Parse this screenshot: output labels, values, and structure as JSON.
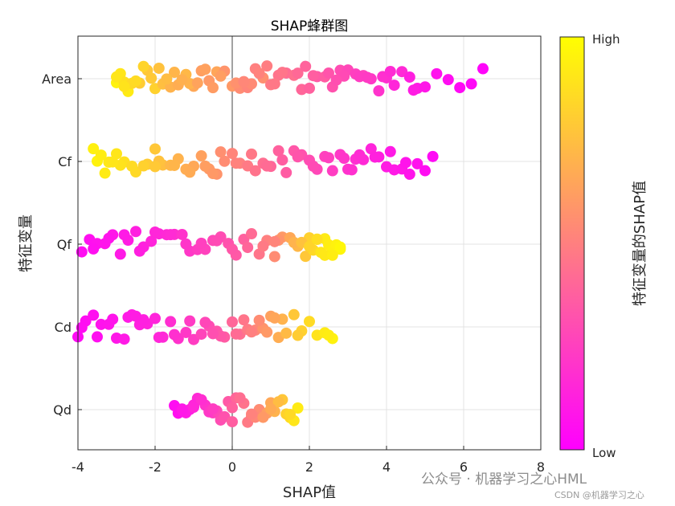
{
  "chart_data": {
    "type": "scatter",
    "title": "SHAP蜂群图",
    "xlabel": "SHAP值",
    "ylabel": "特征变量",
    "xlim": [
      -4,
      8
    ],
    "xticks": [
      "-4",
      "-2",
      "0",
      "2",
      "4",
      "6",
      "8"
    ],
    "grid": true,
    "colormap": {
      "low": "#ff00ff",
      "high": "#ffff00"
    },
    "colorbar": {
      "label": "特征变量的SHAP值",
      "low_label": "Low",
      "high_label": "High"
    },
    "features": [
      {
        "name": "Area",
        "points": [
          [
            -3.0,
            0.95
          ],
          [
            -2.9,
            0.9
          ],
          [
            -2.8,
            0.88
          ],
          [
            -2.7,
            0.92
          ],
          [
            -2.6,
            0.85
          ],
          [
            -2.4,
            0.8
          ],
          [
            -2.2,
            0.78
          ],
          [
            -2.0,
            0.82
          ],
          [
            -1.8,
            0.75
          ],
          [
            -1.6,
            0.7
          ],
          [
            -1.4,
            0.68
          ],
          [
            -1.2,
            0.72
          ],
          [
            -1.0,
            0.66
          ],
          [
            -0.8,
            0.62
          ],
          [
            -0.6,
            0.6
          ],
          [
            -0.4,
            0.65
          ],
          [
            -0.2,
            0.58
          ],
          [
            0.0,
            0.6
          ],
          [
            0.2,
            0.55
          ],
          [
            0.4,
            0.52
          ],
          [
            0.6,
            0.5
          ],
          [
            0.8,
            0.56
          ],
          [
            1.0,
            0.48
          ],
          [
            1.2,
            0.45
          ],
          [
            1.4,
            0.42
          ],
          [
            1.6,
            0.44
          ],
          [
            1.8,
            0.4
          ],
          [
            2.0,
            0.38
          ],
          [
            2.2,
            0.35
          ],
          [
            2.4,
            0.36
          ],
          [
            2.6,
            0.32
          ],
          [
            2.8,
            0.3
          ],
          [
            3.0,
            0.28
          ],
          [
            3.2,
            0.25
          ],
          [
            3.4,
            0.26
          ],
          [
            3.6,
            0.22
          ],
          [
            3.8,
            0.2
          ],
          [
            4.0,
            0.18
          ],
          [
            4.2,
            0.15
          ],
          [
            4.4,
            0.16
          ],
          [
            4.6,
            0.12
          ],
          [
            4.8,
            0.1
          ],
          [
            5.0,
            0.09
          ],
          [
            5.3,
            0.07
          ],
          [
            5.6,
            0.05
          ],
          [
            5.9,
            0.04
          ],
          [
            6.2,
            0.03
          ],
          [
            6.5,
            0.02
          ],
          [
            -2.5,
            0.86
          ],
          [
            -1.9,
            0.76
          ],
          [
            -1.1,
            0.7
          ],
          [
            -0.3,
            0.62
          ],
          [
            0.5,
            0.54
          ],
          [
            1.3,
            0.46
          ],
          [
            2.1,
            0.37
          ],
          [
            2.9,
            0.29
          ],
          [
            3.9,
            0.19
          ],
          [
            4.7,
            0.11
          ],
          [
            -3.0,
            0.9
          ],
          [
            -2.3,
            0.83
          ],
          [
            -1.5,
            0.71
          ],
          [
            -0.7,
            0.63
          ],
          [
            0.1,
            0.57
          ],
          [
            0.9,
            0.49
          ],
          [
            1.7,
            0.41
          ],
          [
            2.5,
            0.33
          ],
          [
            3.3,
            0.24
          ],
          [
            4.1,
            0.17
          ],
          [
            -2.8,
            0.89
          ],
          [
            -2.1,
            0.79
          ],
          [
            -1.3,
            0.69
          ],
          [
            -0.5,
            0.61
          ],
          [
            0.3,
            0.53
          ],
          [
            1.1,
            0.47
          ],
          [
            1.9,
            0.39
          ],
          [
            2.7,
            0.31
          ],
          [
            3.5,
            0.23
          ],
          [
            -1.7,
            0.74
          ],
          [
            -0.9,
            0.64
          ],
          [
            0.7,
            0.51
          ]
        ]
      },
      {
        "name": "Cf",
        "points": [
          [
            -3.5,
            0.95
          ],
          [
            -3.3,
            0.92
          ],
          [
            -3.0,
            0.9
          ],
          [
            -2.8,
            0.88
          ],
          [
            -2.5,
            0.85
          ],
          [
            -2.2,
            0.8
          ],
          [
            -2.0,
            0.78
          ],
          [
            -1.8,
            0.75
          ],
          [
            -1.6,
            0.72
          ],
          [
            -1.4,
            0.7
          ],
          [
            -1.2,
            0.68
          ],
          [
            -1.0,
            0.66
          ],
          [
            -0.8,
            0.63
          ],
          [
            -0.6,
            0.6
          ],
          [
            -0.4,
            0.58
          ],
          [
            -0.2,
            0.55
          ],
          [
            0.0,
            0.52
          ],
          [
            0.2,
            0.5
          ],
          [
            0.4,
            0.48
          ],
          [
            0.6,
            0.45
          ],
          [
            0.8,
            0.43
          ],
          [
            1.0,
            0.4
          ],
          [
            1.2,
            0.38
          ],
          [
            1.4,
            0.36
          ],
          [
            1.6,
            0.34
          ],
          [
            1.8,
            0.32
          ],
          [
            2.0,
            0.3
          ],
          [
            2.2,
            0.28
          ],
          [
            2.4,
            0.26
          ],
          [
            2.6,
            0.24
          ],
          [
            2.8,
            0.22
          ],
          [
            3.0,
            0.2
          ],
          [
            3.2,
            0.18
          ],
          [
            3.4,
            0.16
          ],
          [
            3.6,
            0.14
          ],
          [
            3.8,
            0.12
          ],
          [
            4.0,
            0.11
          ],
          [
            4.2,
            0.1
          ],
          [
            4.4,
            0.09
          ],
          [
            4.6,
            0.08
          ],
          [
            4.8,
            0.07
          ],
          [
            5.0,
            0.05
          ],
          [
            5.2,
            0.04
          ],
          [
            -3.6,
            0.94
          ],
          [
            -3.4,
            0.93
          ],
          [
            -3.2,
            0.91
          ],
          [
            -2.9,
            0.89
          ],
          [
            -2.6,
            0.86
          ],
          [
            -2.3,
            0.82
          ],
          [
            -1.9,
            0.76
          ],
          [
            -1.5,
            0.71
          ],
          [
            -1.1,
            0.67
          ],
          [
            -0.7,
            0.62
          ],
          [
            -0.3,
            0.56
          ],
          [
            0.1,
            0.51
          ],
          [
            0.5,
            0.47
          ],
          [
            0.9,
            0.42
          ],
          [
            1.3,
            0.37
          ],
          [
            1.7,
            0.33
          ],
          [
            2.1,
            0.29
          ],
          [
            2.5,
            0.25
          ],
          [
            2.9,
            0.21
          ],
          [
            3.3,
            0.17
          ],
          [
            3.7,
            0.13
          ],
          [
            4.1,
            0.1
          ],
          [
            4.5,
            0.08
          ],
          [
            -0.5,
            0.6
          ],
          [
            -2.0,
            0.79
          ],
          [
            -3.1,
            0.9
          ],
          [
            3.1,
            0.19
          ]
        ]
      },
      {
        "name": "Qf",
        "points": [
          [
            -3.9,
            0.05
          ],
          [
            -3.7,
            0.06
          ],
          [
            -3.5,
            0.07
          ],
          [
            -3.3,
            0.08
          ],
          [
            -3.1,
            0.09
          ],
          [
            -2.9,
            0.1
          ],
          [
            -2.7,
            0.11
          ],
          [
            -2.5,
            0.12
          ],
          [
            -2.3,
            0.13
          ],
          [
            -2.1,
            0.14
          ],
          [
            -1.9,
            0.15
          ],
          [
            -1.7,
            0.16
          ],
          [
            -1.5,
            0.18
          ],
          [
            -1.3,
            0.2
          ],
          [
            -1.1,
            0.22
          ],
          [
            -0.9,
            0.24
          ],
          [
            -0.7,
            0.26
          ],
          [
            -0.5,
            0.28
          ],
          [
            -0.3,
            0.3
          ],
          [
            -0.1,
            0.32
          ],
          [
            0.1,
            0.35
          ],
          [
            0.3,
            0.38
          ],
          [
            0.5,
            0.42
          ],
          [
            0.7,
            0.46
          ],
          [
            0.9,
            0.5
          ],
          [
            1.1,
            0.55
          ],
          [
            1.3,
            0.6
          ],
          [
            1.5,
            0.66
          ],
          [
            1.7,
            0.72
          ],
          [
            1.9,
            0.78
          ],
          [
            2.0,
            0.82
          ],
          [
            2.1,
            0.85
          ],
          [
            2.2,
            0.88
          ],
          [
            2.3,
            0.9
          ],
          [
            2.4,
            0.92
          ],
          [
            2.5,
            0.93
          ],
          [
            2.6,
            0.94
          ],
          [
            2.7,
            0.95
          ],
          [
            2.8,
            0.96
          ],
          [
            -3.6,
            0.06
          ],
          [
            -3.2,
            0.08
          ],
          [
            -2.8,
            0.1
          ],
          [
            -2.4,
            0.12
          ],
          [
            -2.0,
            0.15
          ],
          [
            -1.6,
            0.17
          ],
          [
            -1.2,
            0.21
          ],
          [
            -0.8,
            0.25
          ],
          [
            -0.4,
            0.29
          ],
          [
            0.0,
            0.34
          ],
          [
            0.4,
            0.4
          ],
          [
            0.8,
            0.48
          ],
          [
            1.2,
            0.58
          ],
          [
            1.6,
            0.7
          ],
          [
            1.8,
            0.76
          ],
          [
            2.0,
            0.83
          ],
          [
            2.2,
            0.87
          ],
          [
            2.4,
            0.91
          ],
          [
            2.6,
            0.93
          ],
          [
            2.8,
            0.97
          ],
          [
            1.1,
            0.52
          ]
        ]
      },
      {
        "name": "Cd",
        "points": [
          [
            -4.0,
            0.04
          ],
          [
            -3.8,
            0.05
          ],
          [
            -3.6,
            0.06
          ],
          [
            -3.4,
            0.07
          ],
          [
            -3.2,
            0.08
          ],
          [
            -3.0,
            0.09
          ],
          [
            -2.8,
            0.1
          ],
          [
            -2.6,
            0.11
          ],
          [
            -2.4,
            0.12
          ],
          [
            -2.2,
            0.13
          ],
          [
            -2.0,
            0.14
          ],
          [
            -1.8,
            0.16
          ],
          [
            -1.6,
            0.18
          ],
          [
            -1.4,
            0.2
          ],
          [
            -1.2,
            0.22
          ],
          [
            -1.0,
            0.24
          ],
          [
            -0.8,
            0.27
          ],
          [
            -0.6,
            0.3
          ],
          [
            -0.4,
            0.33
          ],
          [
            -0.2,
            0.36
          ],
          [
            0.0,
            0.4
          ],
          [
            0.2,
            0.44
          ],
          [
            0.4,
            0.48
          ],
          [
            0.6,
            0.53
          ],
          [
            0.8,
            0.58
          ],
          [
            1.0,
            0.63
          ],
          [
            1.2,
            0.68
          ],
          [
            1.4,
            0.73
          ],
          [
            1.6,
            0.78
          ],
          [
            1.8,
            0.82
          ],
          [
            2.0,
            0.86
          ],
          [
            2.2,
            0.89
          ],
          [
            2.4,
            0.92
          ],
          [
            2.6,
            0.95
          ],
          [
            -3.9,
            0.05
          ],
          [
            -3.5,
            0.06
          ],
          [
            -3.1,
            0.08
          ],
          [
            -2.7,
            0.1
          ],
          [
            -2.3,
            0.12
          ],
          [
            -1.9,
            0.15
          ],
          [
            -1.5,
            0.19
          ],
          [
            -1.1,
            0.23
          ],
          [
            -0.7,
            0.28
          ],
          [
            -0.3,
            0.34
          ],
          [
            0.1,
            0.42
          ],
          [
            0.5,
            0.5
          ],
          [
            0.9,
            0.6
          ],
          [
            1.3,
            0.7
          ],
          [
            1.7,
            0.8
          ],
          [
            2.5,
            0.93
          ],
          [
            -0.5,
            0.31
          ],
          [
            0.3,
            0.46
          ],
          [
            1.1,
            0.65
          ],
          [
            -2.5,
            0.11
          ],
          [
            0.7,
            0.55
          ]
        ]
      },
      {
        "name": "Qd",
        "points": [
          [
            -1.5,
            0.05
          ],
          [
            -1.3,
            0.08
          ],
          [
            -1.1,
            0.12
          ],
          [
            -0.9,
            0.16
          ],
          [
            -0.7,
            0.2
          ],
          [
            -0.5,
            0.25
          ],
          [
            -0.3,
            0.3
          ],
          [
            -0.1,
            0.35
          ],
          [
            0.1,
            0.4
          ],
          [
            0.3,
            0.45
          ],
          [
            0.5,
            0.5
          ],
          [
            0.7,
            0.55
          ],
          [
            0.9,
            0.62
          ],
          [
            1.1,
            0.7
          ],
          [
            1.3,
            0.78
          ],
          [
            1.5,
            0.86
          ],
          [
            1.7,
            0.92
          ],
          [
            -1.4,
            0.06
          ],
          [
            -1.2,
            0.1
          ],
          [
            -1.0,
            0.14
          ],
          [
            -0.8,
            0.18
          ],
          [
            -0.6,
            0.22
          ],
          [
            -0.4,
            0.28
          ],
          [
            -0.2,
            0.32
          ],
          [
            0.0,
            0.38
          ],
          [
            0.2,
            0.43
          ],
          [
            0.4,
            0.48
          ],
          [
            0.6,
            0.53
          ],
          [
            0.8,
            0.6
          ],
          [
            1.0,
            0.66
          ],
          [
            1.2,
            0.74
          ],
          [
            1.4,
            0.82
          ],
          [
            1.6,
            0.9
          ],
          [
            -1.0,
            0.15
          ],
          [
            -0.5,
            0.24
          ],
          [
            0.0,
            0.37
          ],
          [
            0.5,
            0.51
          ],
          [
            1.0,
            0.67
          ],
          [
            1.5,
            0.85
          ],
          [
            -1.3,
            0.09
          ]
        ]
      }
    ]
  },
  "watermark": {
    "text": "公众号 · 机器学习之心HML",
    "credit": "CSDN @机器学习之心"
  }
}
